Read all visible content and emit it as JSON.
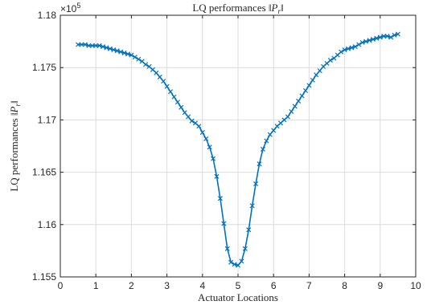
{
  "chart_data": {
    "type": "line",
    "title": "LQ performances ‖P_r‖",
    "xlabel": "Actuator Locations",
    "ylabel": "LQ performances ‖P_r‖",
    "xlim": [
      0,
      10
    ],
    "ylim": [
      1.155,
      1.18
    ],
    "y_exponent_label": "×10^5",
    "xticks": [
      "0",
      "1",
      "2",
      "3",
      "4",
      "5",
      "6",
      "7",
      "8",
      "9",
      "10"
    ],
    "yticks": [
      "1.155",
      "1.16",
      "1.165",
      "1.17",
      "1.175",
      "1.18"
    ],
    "grid": true,
    "legend": "none",
    "color": "#0072bd",
    "marker": "x",
    "series": [
      {
        "x": [
          0.5,
          0.6,
          0.7,
          0.8,
          0.9,
          1.0,
          1.1,
          1.2,
          1.3,
          1.4,
          1.5,
          1.6,
          1.7,
          1.8,
          1.9,
          2.0,
          2.1,
          2.2,
          2.3,
          2.4,
          2.5,
          2.6,
          2.7,
          2.8,
          2.9,
          3.0,
          3.1,
          3.2,
          3.3,
          3.4,
          3.5,
          3.6,
          3.7,
          3.8,
          3.9,
          4.0,
          4.1,
          4.2,
          4.3,
          4.4,
          4.5,
          4.6,
          4.7,
          4.8,
          4.9,
          5.0,
          5.1,
          5.2,
          5.3,
          5.4,
          5.5,
          5.6,
          5.7,
          5.8,
          5.9,
          6.0,
          6.1,
          6.2,
          6.3,
          6.4,
          6.5,
          6.6,
          6.7,
          6.8,
          6.9,
          7.0,
          7.1,
          7.2,
          7.3,
          7.4,
          7.5,
          7.6,
          7.7,
          7.8,
          7.9,
          8.0,
          8.1,
          8.2,
          8.3,
          8.4,
          8.5,
          8.6,
          8.7,
          8.8,
          8.9,
          9.0,
          9.1,
          9.2,
          9.3,
          9.4,
          9.5
        ],
        "values": [
          1.1772,
          1.1772,
          1.1772,
          1.1771,
          1.1771,
          1.1771,
          1.1771,
          1.177,
          1.1769,
          1.1768,
          1.1767,
          1.1766,
          1.1765,
          1.1764,
          1.1763,
          1.1762,
          1.176,
          1.1758,
          1.1756,
          1.1753,
          1.1751,
          1.1748,
          1.1745,
          1.1741,
          1.1737,
          1.1732,
          1.1727,
          1.1722,
          1.1717,
          1.1712,
          1.1707,
          1.1703,
          1.1699,
          1.1697,
          1.1694,
          1.1688,
          1.1682,
          1.1674,
          1.1663,
          1.1646,
          1.1625,
          1.1601,
          1.1577,
          1.1564,
          1.1562,
          1.1561,
          1.1565,
          1.1577,
          1.1595,
          1.1618,
          1.1639,
          1.1658,
          1.1672,
          1.168,
          1.1686,
          1.169,
          1.1694,
          1.1697,
          1.17,
          1.1703,
          1.1708,
          1.1713,
          1.1718,
          1.1723,
          1.1728,
          1.1733,
          1.1738,
          1.1743,
          1.1747,
          1.1751,
          1.1754,
          1.1757,
          1.1759,
          1.1762,
          1.1765,
          1.1767,
          1.1768,
          1.1769,
          1.177,
          1.1772,
          1.1774,
          1.1775,
          1.1776,
          1.1777,
          1.1778,
          1.1779,
          1.178,
          1.178,
          1.1779,
          1.1781,
          1.1782
        ]
      }
    ]
  }
}
